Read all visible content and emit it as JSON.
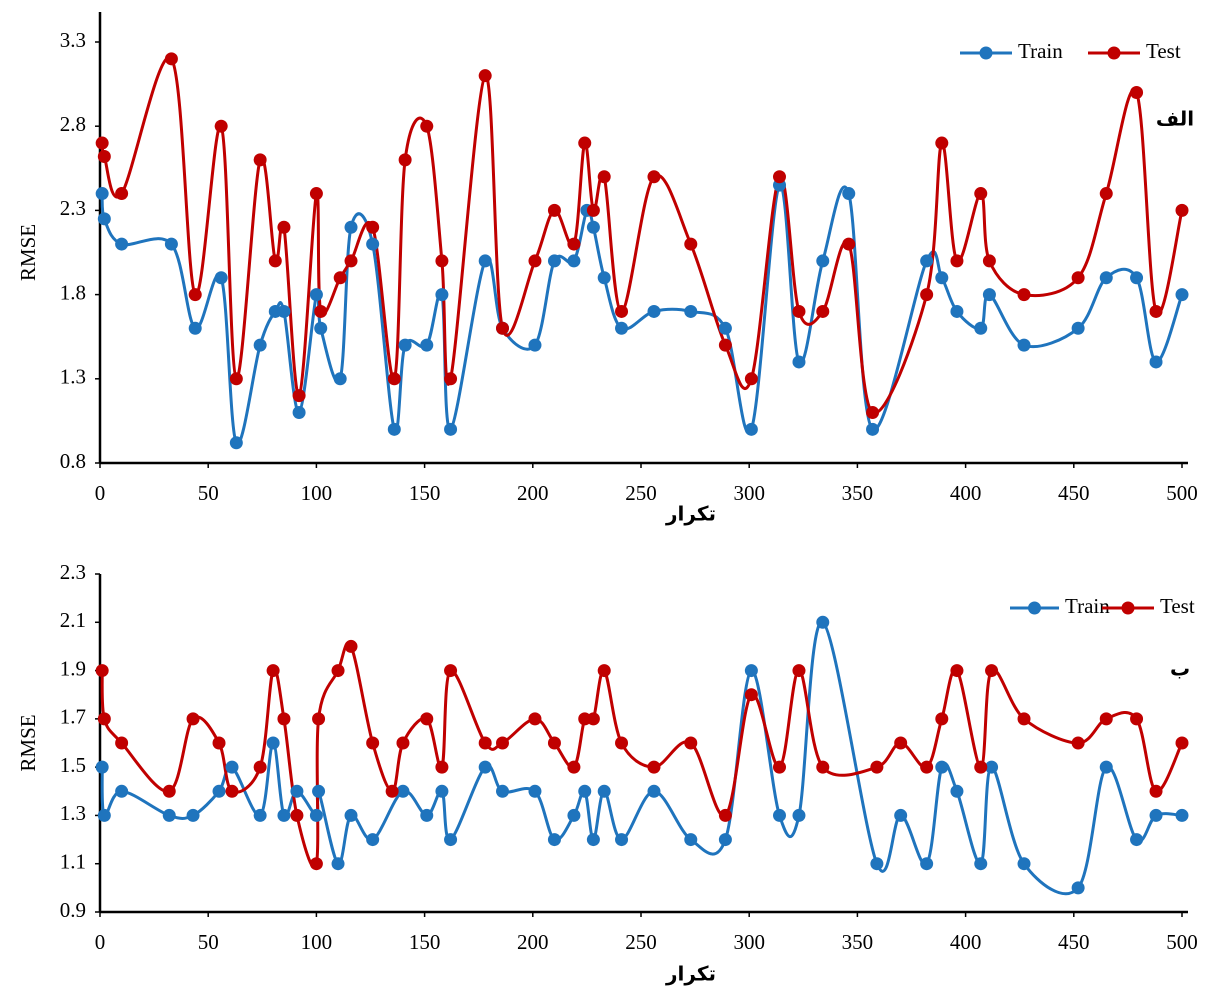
{
  "chart_data": [
    {
      "type": "line",
      "annotation": "الف",
      "x_label": "تکرار",
      "y_label": "RMSE",
      "xlim": [
        0,
        500
      ],
      "xticks": [
        0,
        50,
        100,
        150,
        200,
        250,
        300,
        350,
        400,
        450,
        500
      ],
      "ylim": [
        0.8,
        3.3
      ],
      "yticks": [
        0.8,
        1.3,
        1.8,
        2.3,
        2.8,
        3.3
      ],
      "legend": "upper right",
      "smooth": true,
      "series": [
        {
          "name": "Train",
          "color": "#1f74bd",
          "x": [
            1,
            2,
            10,
            33,
            44,
            56,
            63,
            74,
            81,
            85,
            92,
            100,
            102,
            111,
            116,
            126,
            136,
            141,
            151,
            158,
            162,
            178,
            186,
            201,
            210,
            219,
            225,
            228,
            233,
            241,
            256,
            273,
            289,
            301,
            314,
            323,
            334,
            346,
            357,
            382,
            389,
            396,
            407,
            411,
            427,
            452,
            465,
            479,
            488,
            500
          ],
          "values": [
            2.4,
            2.25,
            2.1,
            2.1,
            1.6,
            1.9,
            0.92,
            1.5,
            1.7,
            1.7,
            1.1,
            1.8,
            1.6,
            1.3,
            2.2,
            2.1,
            1.0,
            1.5,
            1.5,
            1.8,
            1.0,
            2.0,
            1.6,
            1.5,
            2.0,
            2.0,
            2.3,
            2.2,
            1.9,
            1.6,
            1.7,
            1.7,
            1.6,
            1.0,
            2.45,
            1.4,
            2.0,
            2.4,
            1.0,
            2.0,
            1.9,
            1.7,
            1.6,
            1.8,
            1.5,
            1.6,
            1.9,
            1.9,
            1.4,
            1.8
          ]
        },
        {
          "name": "Test",
          "color": "#c00000",
          "x": [
            1,
            2,
            10,
            33,
            44,
            56,
            63,
            74,
            81,
            85,
            92,
            100,
            102,
            111,
            116,
            126,
            136,
            141,
            151,
            158,
            162,
            178,
            186,
            201,
            210,
            219,
            224,
            228,
            233,
            241,
            256,
            273,
            289,
            301,
            314,
            323,
            334,
            346,
            357,
            382,
            389,
            396,
            407,
            411,
            427,
            452,
            465,
            479,
            488,
            500
          ],
          "values": [
            2.7,
            2.62,
            2.4,
            3.2,
            1.8,
            2.8,
            1.3,
            2.6,
            2.0,
            2.2,
            1.2,
            2.4,
            1.7,
            1.9,
            2.0,
            2.2,
            1.3,
            2.6,
            2.8,
            2.0,
            1.3,
            3.1,
            1.6,
            2.0,
            2.3,
            2.1,
            2.7,
            2.3,
            2.5,
            1.7,
            2.5,
            2.1,
            1.5,
            1.3,
            2.5,
            1.7,
            1.7,
            2.1,
            1.1,
            1.8,
            2.7,
            2.0,
            2.4,
            2.0,
            1.8,
            1.9,
            2.4,
            3.0,
            1.7,
            2.3
          ]
        }
      ]
    },
    {
      "type": "line",
      "annotation": "ب",
      "x_label": "تکرار",
      "y_label": "RMSE",
      "xlim": [
        0,
        500
      ],
      "xticks": [
        0,
        50,
        100,
        150,
        200,
        250,
        300,
        350,
        400,
        450,
        500
      ],
      "ylim": [
        0.9,
        2.3
      ],
      "yticks": [
        0.9,
        1.1,
        1.3,
        1.5,
        1.7,
        1.9,
        2.1,
        2.3
      ],
      "legend": "upper right",
      "smooth": true,
      "series": [
        {
          "name": "Train",
          "color": "#1f74bd",
          "x": [
            1,
            2,
            10,
            32,
            43,
            55,
            61,
            74,
            80,
            85,
            91,
            100,
            101,
            110,
            116,
            126,
            140,
            151,
            158,
            162,
            178,
            186,
            201,
            210,
            219,
            224,
            228,
            233,
            241,
            256,
            273,
            289,
            301,
            314,
            323,
            334,
            359,
            370,
            382,
            389,
            396,
            407,
            412,
            427,
            452,
            465,
            479,
            488,
            500
          ],
          "values": [
            1.5,
            1.3,
            1.4,
            1.3,
            1.3,
            1.4,
            1.5,
            1.3,
            1.6,
            1.3,
            1.4,
            1.3,
            1.4,
            1.1,
            1.3,
            1.2,
            1.4,
            1.3,
            1.4,
            1.2,
            1.5,
            1.4,
            1.4,
            1.2,
            1.3,
            1.4,
            1.2,
            1.4,
            1.2,
            1.4,
            1.2,
            1.2,
            1.9,
            1.3,
            1.3,
            2.1,
            1.1,
            1.3,
            1.1,
            1.5,
            1.4,
            1.1,
            1.5,
            1.1,
            1.0,
            1.5,
            1.2,
            1.3,
            1.3
          ]
        },
        {
          "name": "Test",
          "color": "#c00000",
          "x": [
            1,
            2,
            10,
            32,
            43,
            55,
            61,
            74,
            80,
            85,
            91,
            100,
            101,
            110,
            116,
            126,
            135,
            140,
            151,
            158,
            162,
            178,
            186,
            201,
            210,
            219,
            224,
            228,
            233,
            241,
            256,
            273,
            289,
            301,
            314,
            323,
            334,
            359,
            370,
            382,
            389,
            396,
            407,
            412,
            427,
            452,
            465,
            479,
            488,
            500
          ],
          "values": [
            1.9,
            1.7,
            1.6,
            1.4,
            1.7,
            1.6,
            1.4,
            1.5,
            1.9,
            1.7,
            1.3,
            1.1,
            1.7,
            1.9,
            2.0,
            1.6,
            1.4,
            1.6,
            1.7,
            1.5,
            1.9,
            1.6,
            1.6,
            1.7,
            1.6,
            1.5,
            1.7,
            1.7,
            1.9,
            1.6,
            1.5,
            1.6,
            1.3,
            1.8,
            1.5,
            1.9,
            1.5,
            1.5,
            1.6,
            1.5,
            1.7,
            1.9,
            1.5,
            1.9,
            1.7,
            1.6,
            1.7,
            1.7,
            1.4,
            1.6
          ]
        }
      ]
    }
  ]
}
